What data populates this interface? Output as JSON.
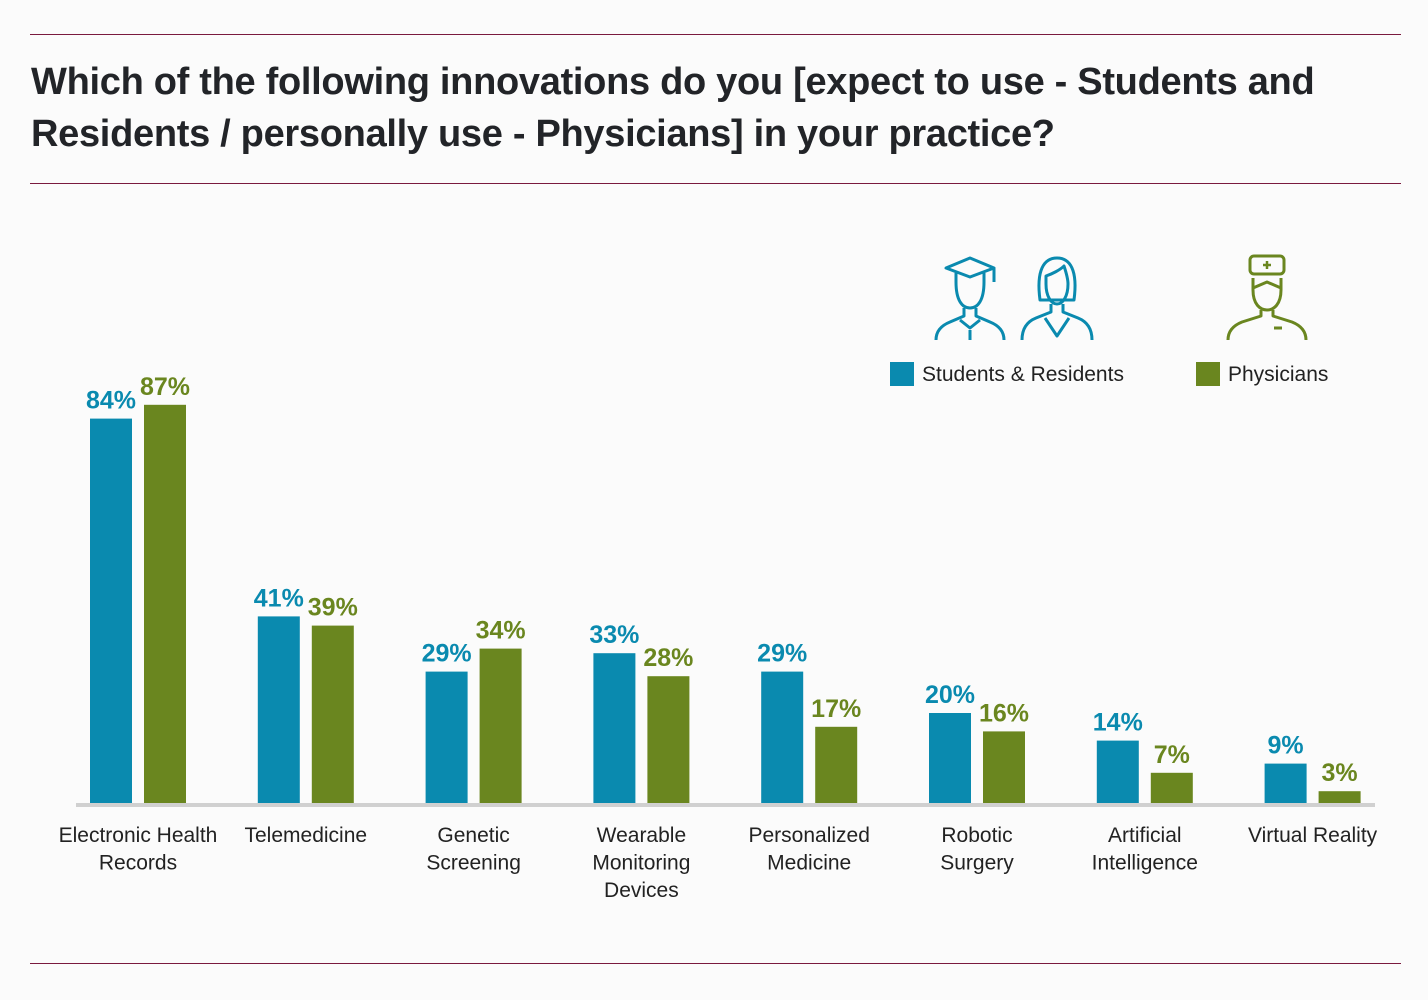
{
  "chart_data": {
    "type": "bar",
    "title": "Which of the following innovations do you [expect to use - Students and Residents / personally use - Physicians] in your practice?",
    "xlabel": "",
    "ylabel": "",
    "ylim": [
      0,
      100
    ],
    "grid": false,
    "legend_position": "top-right",
    "categories": [
      [
        "Electronic Health",
        "Records"
      ],
      [
        "Telemedicine"
      ],
      [
        "Genetic",
        "Screening"
      ],
      [
        "Wearable",
        "Monitoring",
        "Devices"
      ],
      [
        "Personalized",
        "Medicine"
      ],
      [
        "Robotic",
        "Surgery"
      ],
      [
        "Artificial",
        "Intelligence"
      ],
      [
        "Virtual Reality"
      ]
    ],
    "series": [
      {
        "name": "Students & Residents",
        "color": "#0a8aaf",
        "icon": "student-graduate-and-resident-icons",
        "values": [
          84,
          41,
          29,
          33,
          29,
          20,
          14,
          9
        ]
      },
      {
        "name": "Physicians",
        "color": "#6a861f",
        "icon": "surgeon-physician-icon",
        "values": [
          87,
          39,
          34,
          28,
          17,
          16,
          7,
          3
        ]
      }
    ],
    "value_suffix": "%"
  }
}
